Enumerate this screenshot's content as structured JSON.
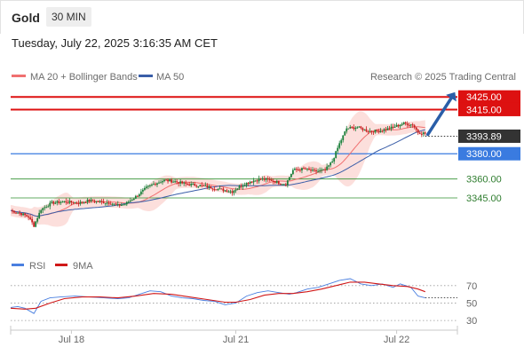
{
  "header": {
    "symbol": "Gold",
    "timeframe": "30 MIN"
  },
  "timestamp": "Tuesday, July 22, 2025 3:16:35 AM CET",
  "legend": {
    "bollinger": "MA 20 + Bollinger Bands",
    "ma50": "MA 50",
    "credit": "Research © 2025 Trading Central",
    "rsi": "RSI",
    "rsi_ma": "9MA"
  },
  "colors": {
    "resistance": "#dd1111",
    "support": "#2f8f2f",
    "pivot": "#3a7be0",
    "ma20": "#f07070",
    "ma50": "#3a5ea8",
    "bbands": "#fbd9d6",
    "rsi": "#4a7fe0",
    "rsi_ma": "#d01818",
    "up": "#1b7f3a",
    "down": "#c81f1f",
    "arrow": "#2a5ea8"
  },
  "chart_data": [
    {
      "type": "candlestick",
      "x_ticks": [
        "Jul 18",
        "Jul 21",
        "Jul 22"
      ],
      "ylim": [
        3300,
        3435
      ],
      "current_price": "3393.89",
      "levels": [
        {
          "value": 3425,
          "label": "3425.00",
          "kind": "resistance"
        },
        {
          "value": 3415,
          "label": "3415.00",
          "kind": "resistance"
        },
        {
          "value": 3380,
          "label": "3380.00",
          "kind": "pivot"
        },
        {
          "value": 3360,
          "label": "3360.00",
          "kind": "support"
        },
        {
          "value": 3345,
          "label": "3345.00",
          "kind": "support"
        }
      ],
      "close_path": [
        [
          0,
          3335
        ],
        [
          5,
          3333
        ],
        [
          10,
          3330
        ],
        [
          13,
          3323
        ],
        [
          17,
          3336
        ],
        [
          23,
          3341
        ],
        [
          30,
          3342
        ],
        [
          38,
          3341
        ],
        [
          44,
          3343
        ],
        [
          50,
          3342
        ],
        [
          56,
          3341
        ],
        [
          60,
          3339
        ],
        [
          64,
          3340
        ],
        [
          70,
          3346
        ],
        [
          76,
          3353
        ],
        [
          80,
          3356
        ],
        [
          86,
          3359
        ],
        [
          92,
          3358
        ],
        [
          98,
          3356
        ],
        [
          104,
          3355
        ],
        [
          110,
          3354
        ],
        [
          116,
          3352
        ],
        [
          120,
          3351
        ],
        [
          124,
          3350
        ],
        [
          128,
          3354
        ],
        [
          134,
          3358
        ],
        [
          140,
          3360
        ],
        [
          146,
          3359
        ],
        [
          150,
          3357
        ],
        [
          154,
          3356
        ],
        [
          158,
          3367
        ],
        [
          164,
          3368
        ],
        [
          170,
          3366
        ],
        [
          176,
          3367
        ],
        [
          180,
          3374
        ],
        [
          184,
          3388
        ],
        [
          188,
          3400
        ],
        [
          194,
          3401
        ],
        [
          200,
          3398
        ],
        [
          206,
          3398
        ],
        [
          212,
          3400
        ],
        [
          216,
          3402
        ],
        [
          220,
          3404
        ],
        [
          225,
          3403
        ],
        [
          228,
          3397
        ],
        [
          232,
          3396
        ]
      ],
      "last_index": 232,
      "index_range": [
        0,
        250
      ]
    },
    {
      "type": "line",
      "name": "RSI",
      "ylim": [
        25,
        80
      ],
      "y_ticks": [
        70,
        50,
        30
      ],
      "series": [
        {
          "name": "RSI",
          "points": [
            [
              0,
              45
            ],
            [
              4,
              46
            ],
            [
              8,
              44
            ],
            [
              13,
              38
            ],
            [
              17,
              52
            ],
            [
              22,
              56
            ],
            [
              28,
              57
            ],
            [
              36,
              58
            ],
            [
              44,
              57
            ],
            [
              52,
              56
            ],
            [
              60,
              55
            ],
            [
              66,
              56
            ],
            [
              72,
              60
            ],
            [
              78,
              64
            ],
            [
              84,
              63
            ],
            [
              90,
              58
            ],
            [
              96,
              56
            ],
            [
              102,
              55
            ],
            [
              108,
              53
            ],
            [
              114,
              52
            ],
            [
              120,
              48
            ],
            [
              126,
              50
            ],
            [
              132,
              58
            ],
            [
              138,
              62
            ],
            [
              144,
              64
            ],
            [
              150,
              62
            ],
            [
              156,
              60
            ],
            [
              160,
              62
            ],
            [
              166,
              66
            ],
            [
              172,
              68
            ],
            [
              178,
              72
            ],
            [
              184,
              76
            ],
            [
              190,
              78
            ],
            [
              196,
              72
            ],
            [
              202,
              70
            ],
            [
              208,
              72
            ],
            [
              214,
              68
            ],
            [
              218,
              72
            ],
            [
              224,
              68
            ],
            [
              228,
              58
            ],
            [
              232,
              56
            ]
          ]
        },
        {
          "name": "9MA",
          "points": [
            [
              0,
              44
            ],
            [
              8,
              43
            ],
            [
              14,
              44
            ],
            [
              22,
              50
            ],
            [
              30,
              55
            ],
            [
              40,
              57
            ],
            [
              50,
              57
            ],
            [
              60,
              56
            ],
            [
              70,
              58
            ],
            [
              80,
              61
            ],
            [
              90,
              60
            ],
            [
              100,
              57
            ],
            [
              110,
              54
            ],
            [
              120,
              51
            ],
            [
              126,
              51
            ],
            [
              134,
              54
            ],
            [
              142,
              59
            ],
            [
              150,
              61
            ],
            [
              158,
              61
            ],
            [
              166,
              63
            ],
            [
              174,
              66
            ],
            [
              182,
              70
            ],
            [
              190,
              74
            ],
            [
              198,
              74
            ],
            [
              206,
              72
            ],
            [
              214,
              70
            ],
            [
              222,
              69
            ],
            [
              228,
              66
            ],
            [
              232,
              63
            ]
          ]
        }
      ]
    }
  ]
}
